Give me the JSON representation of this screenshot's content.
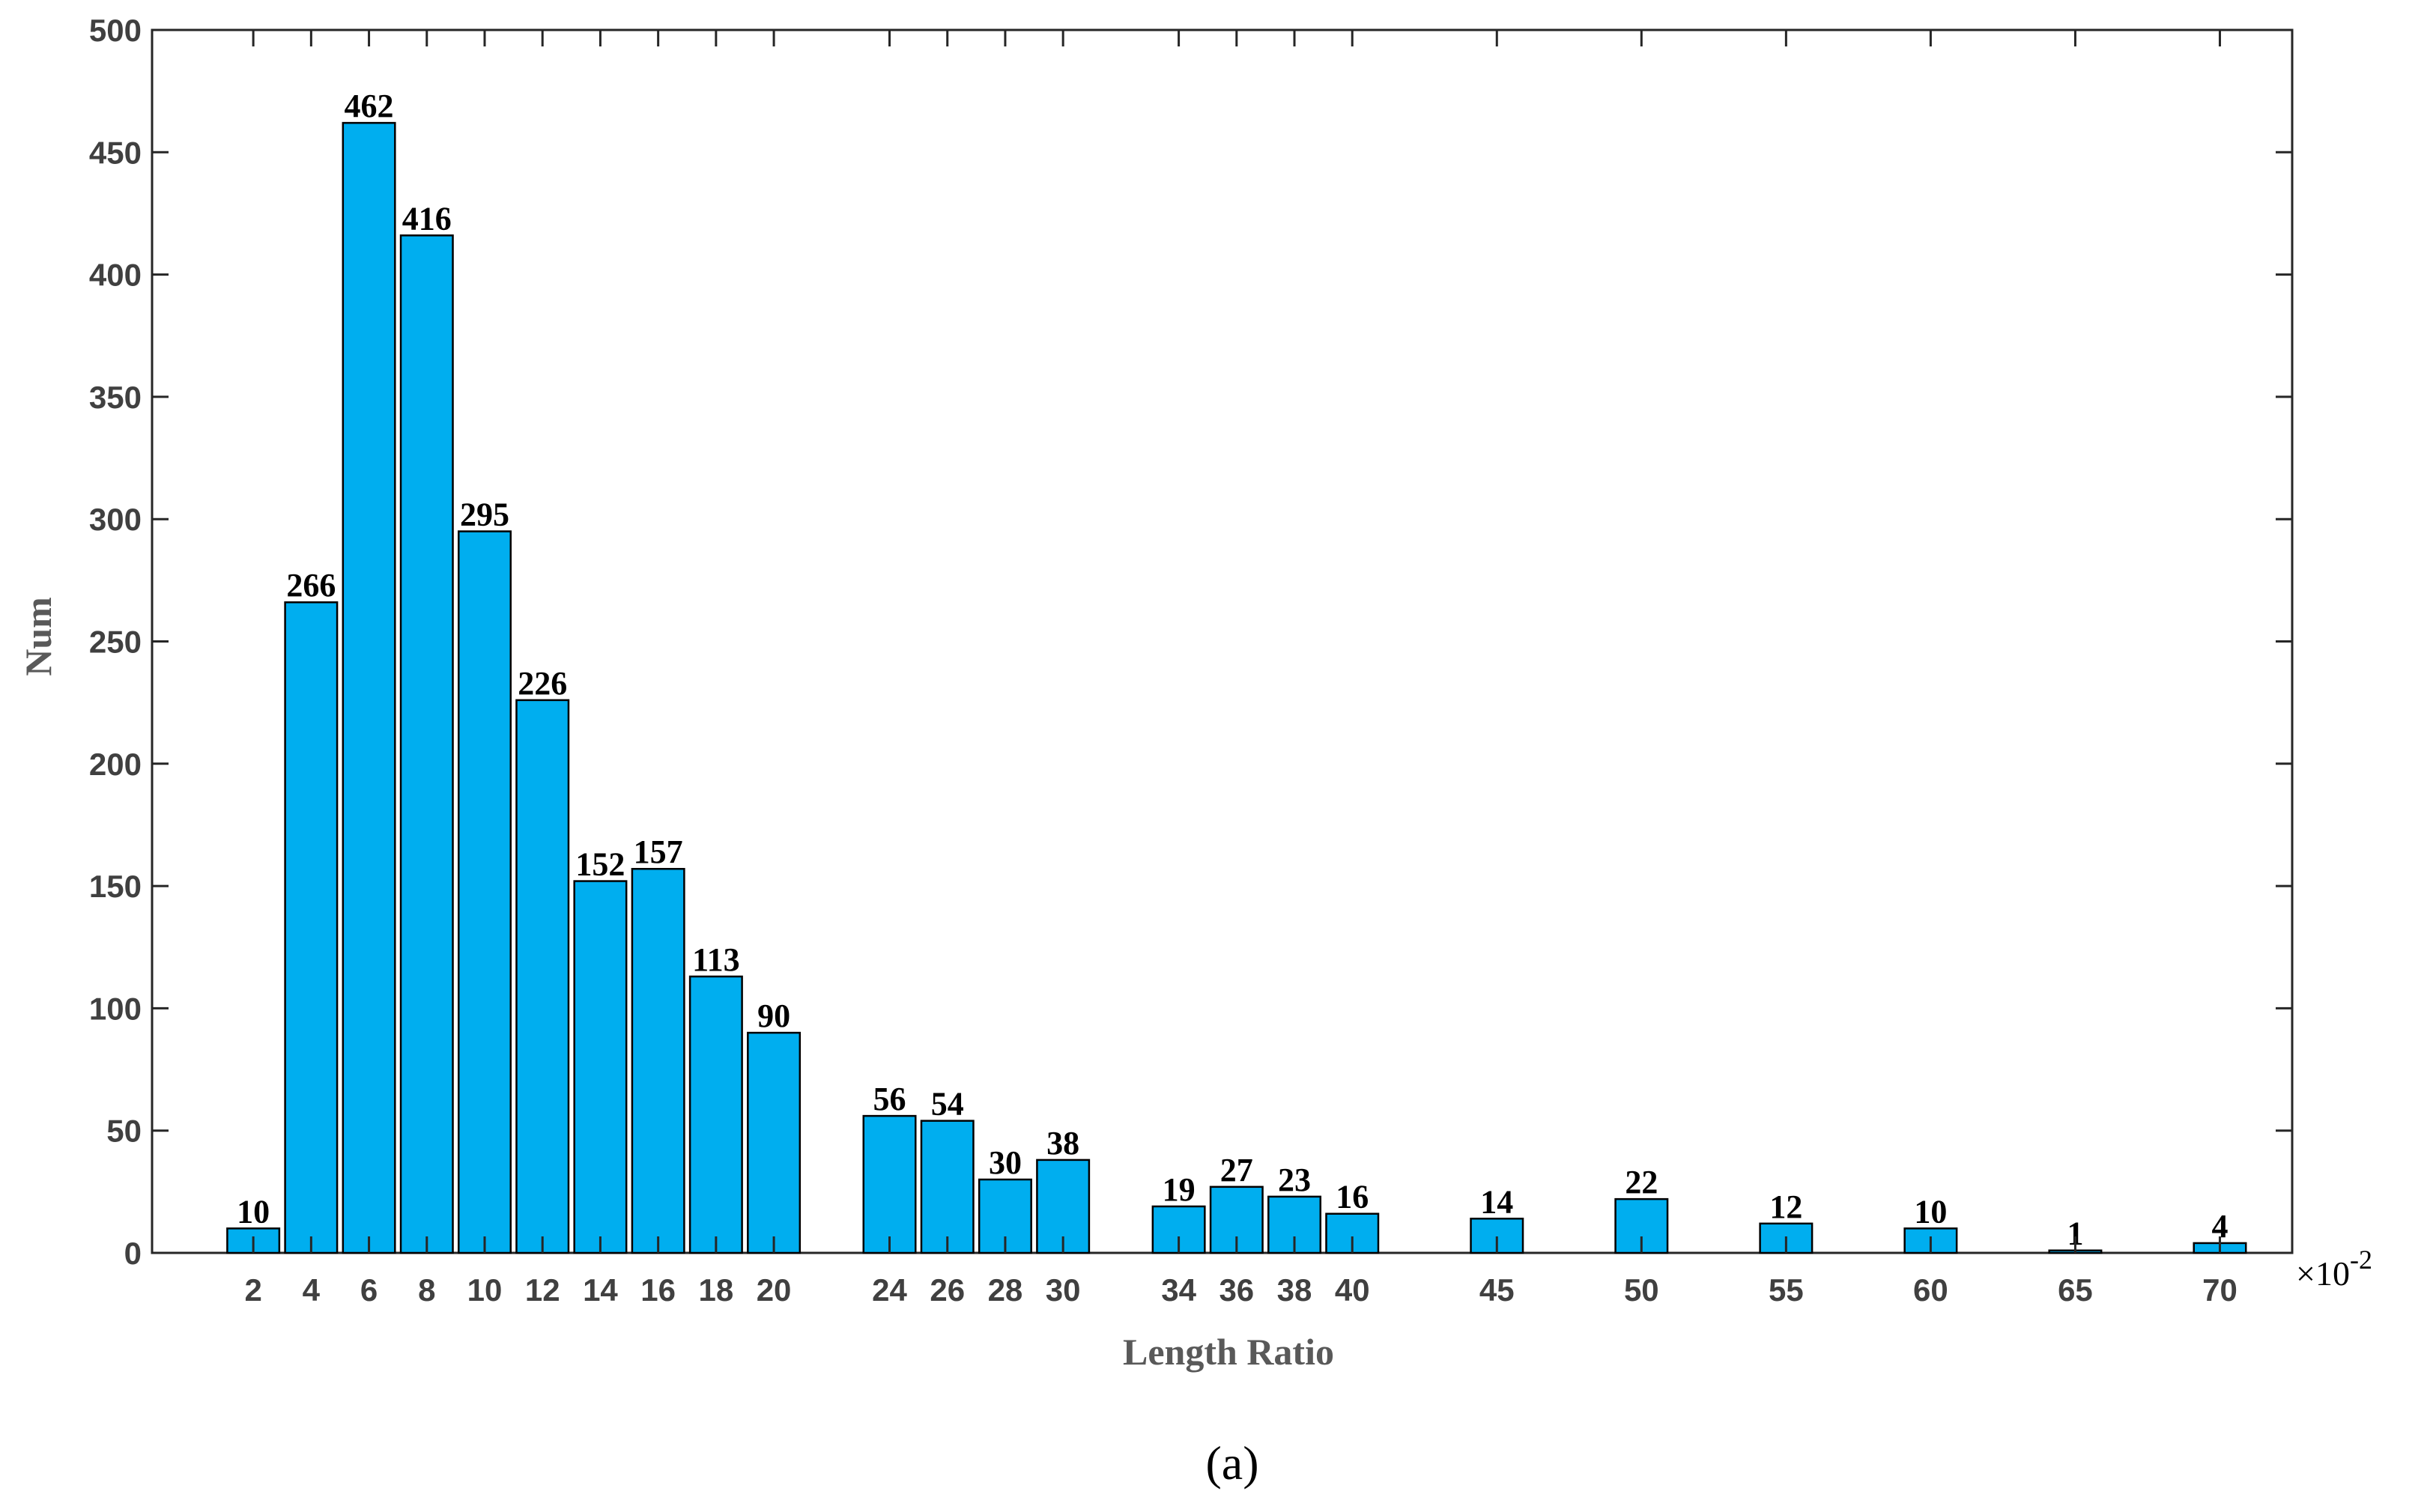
{
  "chart_data": {
    "type": "bar",
    "categories": [
      2,
      4,
      6,
      8,
      10,
      12,
      14,
      16,
      18,
      20,
      24,
      26,
      28,
      30,
      34,
      36,
      38,
      40,
      45,
      50,
      55,
      60,
      65,
      70
    ],
    "values": [
      10,
      266,
      462,
      416,
      295,
      226,
      152,
      157,
      113,
      90,
      56,
      54,
      30,
      38,
      19,
      27,
      23,
      16,
      14,
      22,
      12,
      10,
      1,
      4
    ],
    "xticks": [
      2,
      4,
      6,
      8,
      10,
      12,
      14,
      16,
      18,
      20,
      24,
      26,
      28,
      30,
      34,
      36,
      38,
      40,
      45,
      50,
      55,
      60,
      65,
      70
    ],
    "yticks": [
      0,
      50,
      100,
      150,
      200,
      250,
      300,
      350,
      400,
      450,
      500
    ],
    "xlim": [
      -1.5,
      72.5
    ],
    "ylim": [
      0,
      500
    ],
    "xlabel": "Length Ratio",
    "ylabel": "Num",
    "x_multiplier": "×10",
    "x_multiplier_exp": "-2",
    "caption": "(a)",
    "bar_color": "#00AEEF",
    "bar_edge_color": "#000000",
    "grid": false,
    "legend": false
  }
}
